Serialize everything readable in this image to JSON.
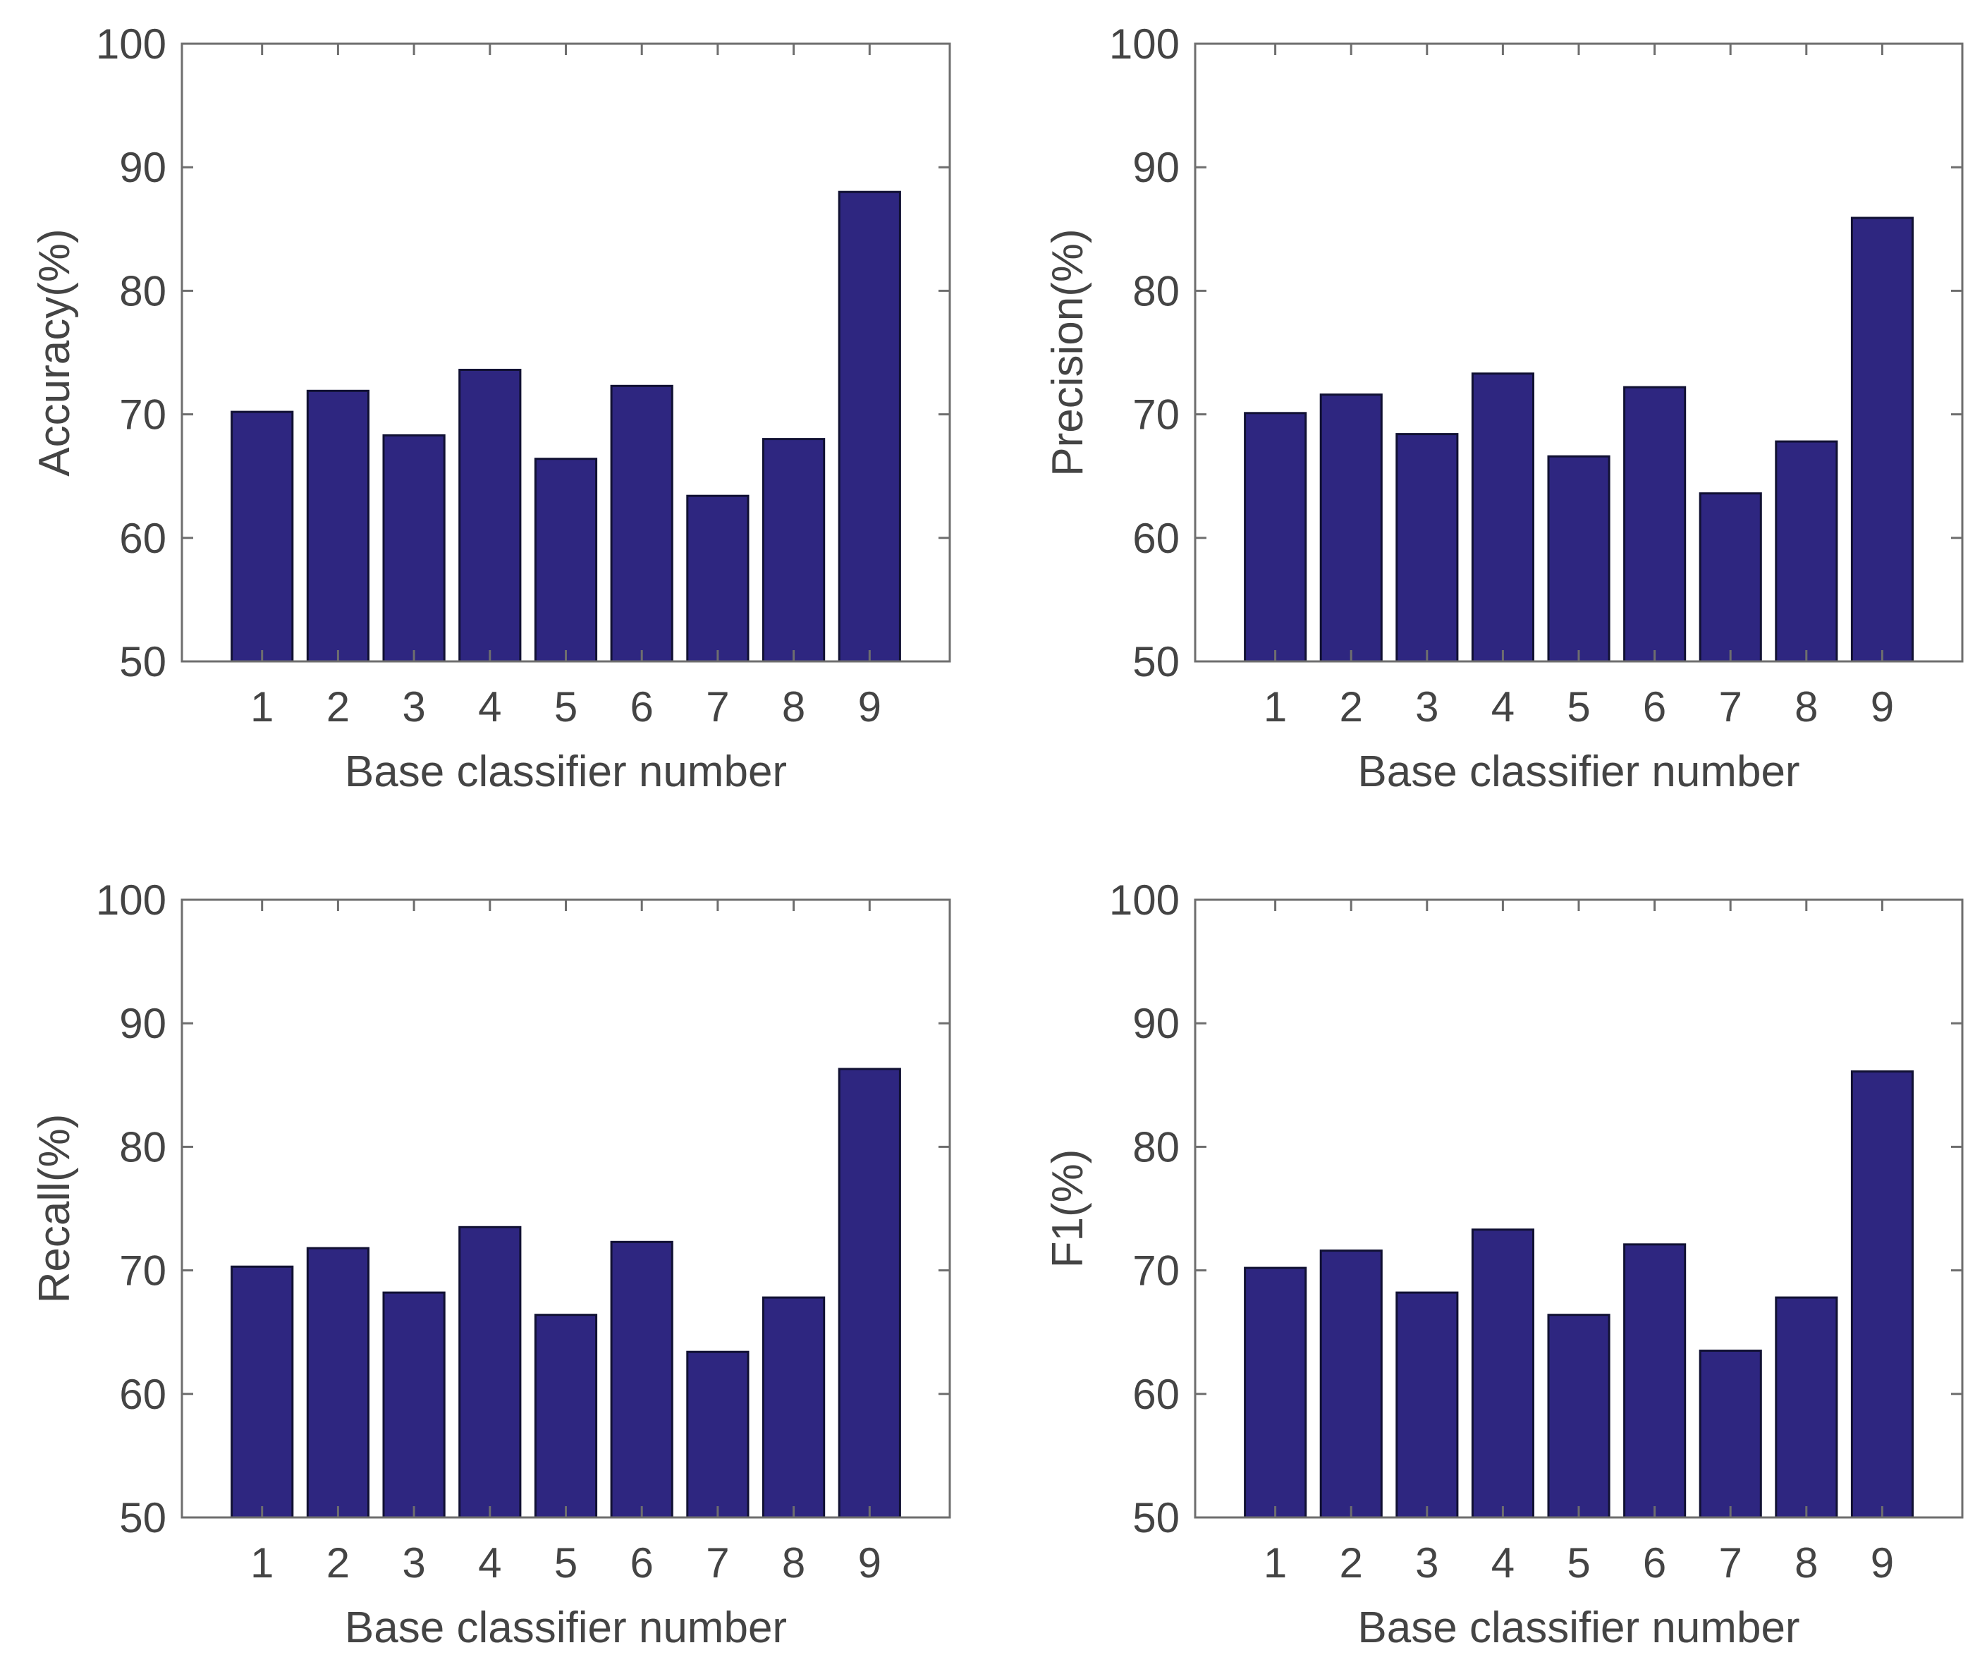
{
  "colors": {
    "bar": "#2E2680",
    "axes": "#6e6e6e",
    "text": "#444444"
  },
  "chart_data": [
    {
      "type": "bar",
      "title": "",
      "xlabel": "Base classifier number",
      "ylabel": "Accuracy(%)",
      "ylim": [
        50,
        100
      ],
      "yticks": [
        "50",
        "60",
        "70",
        "80",
        "90",
        "100"
      ],
      "categories": [
        "1",
        "2",
        "3",
        "4",
        "5",
        "6",
        "7",
        "8",
        "9"
      ],
      "values": [
        70.2,
        71.9,
        68.3,
        73.6,
        66.4,
        72.3,
        63.4,
        68.0,
        88.0
      ],
      "grid": false
    },
    {
      "type": "bar",
      "title": "",
      "xlabel": "Base classifier number",
      "ylabel": "Precision(%)",
      "ylim": [
        50,
        100
      ],
      "yticks": [
        "50",
        "60",
        "70",
        "80",
        "90",
        "100"
      ],
      "categories": [
        "1",
        "2",
        "3",
        "4",
        "5",
        "6",
        "7",
        "8",
        "9"
      ],
      "values": [
        70.1,
        71.6,
        68.4,
        73.3,
        66.6,
        72.2,
        63.6,
        67.8,
        85.9
      ],
      "grid": false
    },
    {
      "type": "bar",
      "title": "",
      "xlabel": "Base classifier number",
      "ylabel": "Recall(%)",
      "ylim": [
        50,
        100
      ],
      "yticks": [
        "50",
        "60",
        "70",
        "80",
        "90",
        "100"
      ],
      "categories": [
        "1",
        "2",
        "3",
        "4",
        "5",
        "6",
        "7",
        "8",
        "9"
      ],
      "values": [
        70.3,
        71.8,
        68.2,
        73.5,
        66.4,
        72.3,
        63.4,
        67.8,
        86.3
      ],
      "grid": false
    },
    {
      "type": "bar",
      "title": "",
      "xlabel": "Base classifier number",
      "ylabel": "F1(%)",
      "ylim": [
        50,
        100
      ],
      "yticks": [
        "50",
        "60",
        "70",
        "80",
        "90",
        "100"
      ],
      "categories": [
        "1",
        "2",
        "3",
        "4",
        "5",
        "6",
        "7",
        "8",
        "9"
      ],
      "values": [
        70.2,
        71.6,
        68.2,
        73.3,
        66.4,
        72.1,
        63.5,
        67.8,
        86.1
      ],
      "grid": false
    }
  ]
}
